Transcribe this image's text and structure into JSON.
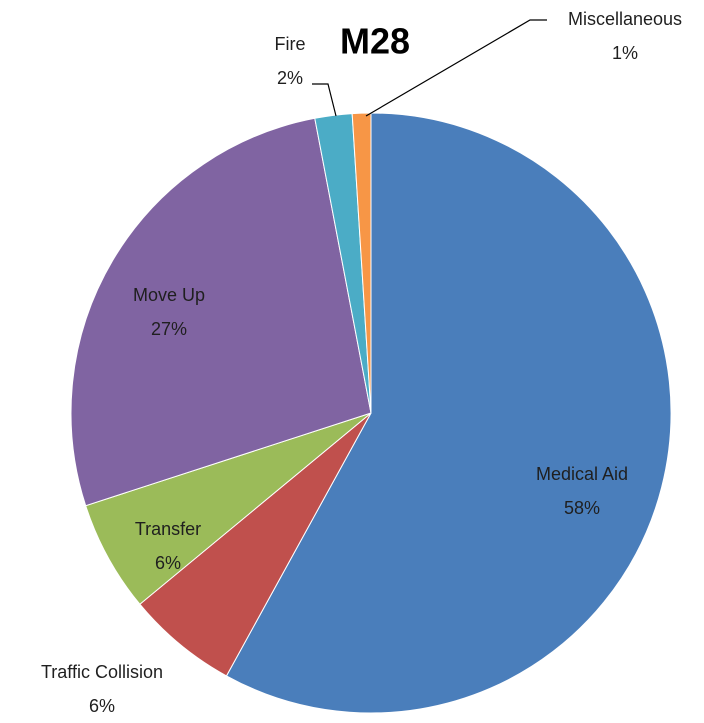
{
  "chart_data": {
    "type": "pie",
    "title": "M28",
    "categories": [
      "Medical Aid",
      "Traffic Collision",
      "Transfer",
      "Move Up",
      "Fire",
      "Miscellaneous"
    ],
    "values": [
      58,
      6,
      6,
      27,
      2,
      1
    ],
    "value_labels": [
      "58%",
      "6%",
      "6%",
      "27%",
      "2%",
      "1%"
    ],
    "colors": [
      "#4a7ebb",
      "#c0504d",
      "#9bbb59",
      "#8064a2",
      "#4bacc6",
      "#f79646"
    ]
  }
}
